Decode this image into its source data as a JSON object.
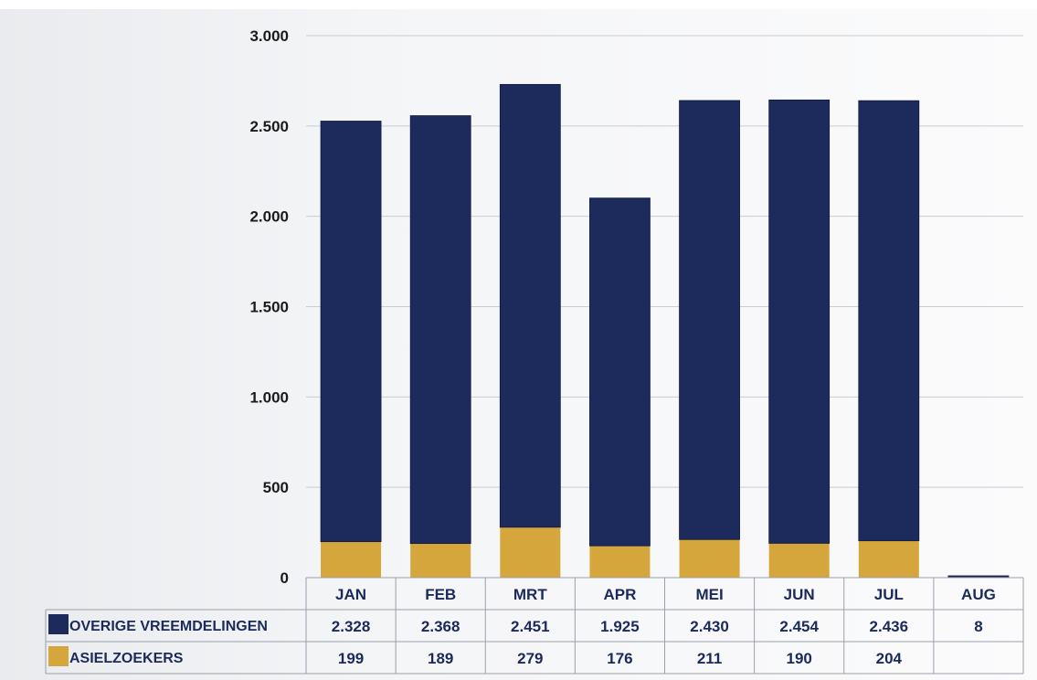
{
  "chart_data": {
    "type": "bar",
    "stacked": true,
    "categories": [
      "JAN",
      "FEB",
      "MRT",
      "APR",
      "MEI",
      "JUN",
      "JUL",
      "AUG"
    ],
    "series": [
      {
        "name": "ASIELZOEKERS",
        "color": "#d4a63c",
        "values": [
          199,
          189,
          279,
          176,
          211,
          190,
          204,
          null
        ],
        "labels": [
          "199",
          "189",
          "279",
          "176",
          "211",
          "190",
          "204",
          ""
        ]
      },
      {
        "name": "OVERIGE VREEMDELINGEN",
        "color": "#1c2a5c",
        "values": [
          2328,
          2368,
          2451,
          1925,
          2430,
          2454,
          2436,
          8
        ],
        "labels": [
          "2.328",
          "2.368",
          "2.451",
          "1.925",
          "2.430",
          "2.454",
          "2.436",
          "8"
        ]
      }
    ],
    "ylim": [
      0,
      3000
    ],
    "y_ticks": [
      0,
      500,
      1000,
      1500,
      2000,
      2500,
      3000
    ],
    "y_tick_labels": [
      "0",
      "500",
      "1.000",
      "1.500",
      "2.000",
      "2.500",
      "3.000"
    ],
    "grid": true,
    "legend_placement": "data-table-left",
    "xlabel": "",
    "ylabel": "",
    "title": ""
  },
  "colors": {
    "gridline": "#c9ccd2",
    "table_border": "#9aa0aa"
  }
}
